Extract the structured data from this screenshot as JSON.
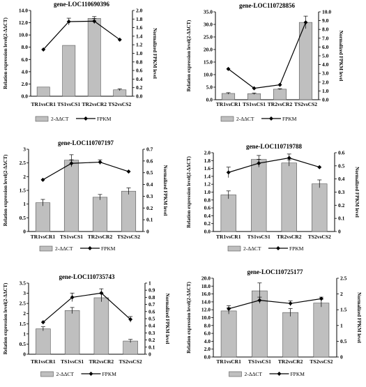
{
  "colors": {
    "bar_fill": "#bfbfbf",
    "bar_stroke": "#555555",
    "line": "#000000",
    "background": "#ffffff"
  },
  "legend": {
    "bar_label": "2-ΔΔCT",
    "line_label": "FPKM"
  },
  "chart_data": [
    {
      "type": "bar",
      "title": "gene-LOC110690396",
      "categories": [
        "TR1vsCR1",
        "TS1vsCS1",
        "TR2vsCR2",
        "TS2vsCS2"
      ],
      "ylabel": "Relation expression level(2-ΔΔCT)",
      "y2label": "Normalized FPKM level",
      "ylim": [
        0,
        14
      ],
      "yticks": [
        0,
        2,
        4,
        6,
        8,
        10,
        12,
        14
      ],
      "ytick_labels": [
        "0.0",
        "2.0",
        "4.0",
        "6.0",
        "8.0",
        "10.0",
        "12.0",
        "14.0"
      ],
      "y2lim": [
        0,
        2
      ],
      "y2ticks": [
        0,
        0.2,
        0.4,
        0.6,
        0.8,
        1,
        1.2,
        1.4,
        1.6,
        1.8,
        2
      ],
      "y2tick_labels": [
        "0.0",
        "0.2",
        "0.4",
        "0.6",
        "0.8",
        "1.0",
        "1.2",
        "1.4",
        "1.6",
        "1.8",
        "2.0"
      ],
      "series": [
        {
          "name": "2-ΔΔCT",
          "type": "bar",
          "values": [
            1.5,
            8.3,
            12.7,
            1.05
          ],
          "errors": [
            0,
            0,
            0.3,
            0.15
          ]
        },
        {
          "name": "FPKM",
          "type": "line",
          "axis": "secondary",
          "values": [
            1.09,
            1.74,
            1.75,
            1.32
          ],
          "errors": [
            0,
            0.08,
            0.06,
            0
          ]
        }
      ],
      "legend_position": "bottom"
    },
    {
      "type": "bar",
      "title": "gene-LOC110728856",
      "categories": [
        "TR1vsCR1",
        "TS1vsCS1",
        "TR2vsCR2",
        "TS2vsCS2"
      ],
      "ylabel": "Relation expression level(2-ΔΔCT)",
      "y2label": "Normalized FPKM level",
      "ylim": [
        0,
        35
      ],
      "yticks": [
        0,
        5,
        10,
        15,
        20,
        25,
        30,
        35
      ],
      "ytick_labels": [
        "0.0",
        "5.0",
        "10.0",
        "15.0",
        "20.0",
        "25.0",
        "30.0",
        "35.0"
      ],
      "y2lim": [
        0,
        10
      ],
      "y2ticks": [
        0,
        1,
        2,
        3,
        4,
        5,
        6,
        7,
        8,
        9,
        10
      ],
      "y2tick_labels": [
        "0.0",
        "1.0",
        "2.0",
        "3.0",
        "4.0",
        "5.0",
        "6.0",
        "7.0",
        "8.0",
        "9.0",
        "10.0"
      ],
      "series": [
        {
          "name": "2-ΔΔCT",
          "type": "bar",
          "values": [
            2.5,
            2.4,
            4.2,
            30.8
          ],
          "errors": [
            0.3,
            0.3,
            0.2,
            2.5
          ]
        },
        {
          "name": "FPKM",
          "type": "line",
          "axis": "secondary",
          "values": [
            3.5,
            1.3,
            1.7,
            8.8
          ],
          "errors": [
            0,
            0,
            0,
            0
          ]
        }
      ],
      "legend_position": "bottom"
    },
    {
      "type": "bar",
      "title": "gene-LOC110707197",
      "categories": [
        "TR1vsCR1",
        "TS1vsCS1",
        "TR2vsCR2",
        "TS2vsCS2"
      ],
      "ylabel": "Relation expression level(2-ΔΔCT)",
      "y2label": "Normalized FPKM level",
      "ylim": [
        0,
        3
      ],
      "yticks": [
        0,
        0.5,
        1,
        1.5,
        2,
        2.5,
        3
      ],
      "ytick_labels": [
        "0",
        "0.5",
        "1",
        "1.5",
        "2",
        "2.5",
        "3"
      ],
      "y2lim": [
        0,
        0.7
      ],
      "y2ticks": [
        0,
        0.1,
        0.2,
        0.3,
        0.4,
        0.5,
        0.6,
        0.7
      ],
      "y2tick_labels": [
        "0",
        "0.1",
        "0.2",
        "0.3",
        "0.4",
        "0.5",
        "0.6",
        "0.7"
      ],
      "series": [
        {
          "name": "2-ΔΔCT",
          "type": "bar",
          "values": [
            1.05,
            2.6,
            1.25,
            1.47
          ],
          "errors": [
            0.12,
            0.2,
            0.1,
            0.12
          ]
        },
        {
          "name": "FPKM",
          "type": "line",
          "axis": "secondary",
          "values": [
            0.44,
            0.58,
            0.59,
            0.51
          ],
          "errors": [
            0,
            0.03,
            0.02,
            0
          ]
        }
      ],
      "legend_position": "bottom"
    },
    {
      "type": "bar",
      "title": "gene-LOC110719788",
      "categories": [
        "TR1vsCR1",
        "TS1vsCS1",
        "TR2vsCR2",
        "TS2vsCS2"
      ],
      "ylabel": "Relation expression level(2-ΔΔCT)",
      "y2label": "Normalized FPKM level",
      "ylim": [
        0,
        2
      ],
      "yticks": [
        0,
        0.2,
        0.4,
        0.6,
        0.8,
        1,
        1.2,
        1.4,
        1.6,
        1.8,
        2
      ],
      "ytick_labels": [
        "0.0",
        "0.2",
        "0.4",
        "0.6",
        "0.8",
        "1.0",
        "1.2",
        "1.4",
        "1.6",
        "1.8",
        "2.0"
      ],
      "y2lim": [
        0,
        0.6
      ],
      "y2ticks": [
        0,
        0.1,
        0.2,
        0.3,
        0.4,
        0.5,
        0.6
      ],
      "y2tick_labels": [
        "0",
        "0.1",
        "0.2",
        "0.3",
        "0.4",
        "0.5",
        "0.6"
      ],
      "series": [
        {
          "name": "2-ΔΔCT",
          "type": "bar",
          "values": [
            0.93,
            1.83,
            1.74,
            1.21
          ],
          "errors": [
            0.1,
            0.1,
            0.08,
            0.1
          ]
        },
        {
          "name": "FPKM",
          "type": "line",
          "axis": "secondary",
          "values": [
            0.45,
            0.52,
            0.56,
            0.49
          ],
          "errors": [
            0.04,
            0.03,
            0.03,
            0
          ]
        }
      ],
      "legend_position": "bottom"
    },
    {
      "type": "bar",
      "title": "gene-LOC110735743",
      "categories": [
        "TR1vsCR1",
        "TS1vsCS1",
        "TR2vsCR2",
        "TS2vsCS2"
      ],
      "ylabel": "Relation expression level(2-ΔΔCT)",
      "y2label": "Normalized FPKM level",
      "ylim": [
        0,
        3.5
      ],
      "yticks": [
        0,
        0.5,
        1,
        1.5,
        2,
        2.5,
        3,
        3.5
      ],
      "ytick_labels": [
        "0",
        "0.5",
        "1",
        "1.5",
        "2",
        "2.5",
        "3",
        "3.5"
      ],
      "y2lim": [
        0,
        1
      ],
      "y2ticks": [
        0,
        0.1,
        0.2,
        0.3,
        0.4,
        0.5,
        0.6,
        0.7,
        0.8,
        0.9,
        1
      ],
      "y2tick_labels": [
        "0",
        "0.1",
        "0.2",
        "0.3",
        "0.4",
        "0.5",
        "0.6",
        "0.7",
        "0.8",
        "0.9",
        "1"
      ],
      "series": [
        {
          "name": "2-ΔΔCT",
          "type": "bar",
          "values": [
            1.25,
            2.15,
            2.78,
            0.65
          ],
          "errors": [
            0.1,
            0.15,
            0.2,
            0.08
          ]
        },
        {
          "name": "FPKM",
          "type": "line",
          "axis": "secondary",
          "values": [
            0.45,
            0.8,
            0.86,
            0.49
          ],
          "errors": [
            0,
            0.06,
            0.06,
            0.04
          ]
        }
      ],
      "legend_position": "bottom"
    },
    {
      "type": "bar",
      "title": "gene-LOC110725177",
      "categories": [
        "TR1vsCR1",
        "TS1vsCS1",
        "TR2vsCR2",
        "TS2vsCS2"
      ],
      "ylabel": "Relation expression level(2-ΔΔCT)",
      "y2label": "Normalized FPKM level",
      "ylim": [
        0,
        20
      ],
      "yticks": [
        0,
        2,
        4,
        6,
        8,
        10,
        12,
        14,
        16,
        18,
        20
      ],
      "ytick_labels": [
        "0.0",
        "2.0",
        "4.0",
        "6.0",
        "8.0",
        "10.0",
        "12.0",
        "14.0",
        "16.0",
        "18.0",
        "20.0"
      ],
      "y2lim": [
        0,
        2.5
      ],
      "y2ticks": [
        0,
        0.5,
        1,
        1.5,
        2,
        2.5
      ],
      "y2tick_labels": [
        "0",
        "0.5",
        "1",
        "1.5",
        "2",
        "2.5"
      ],
      "series": [
        {
          "name": "2-ΔΔCT",
          "type": "bar",
          "values": [
            11.7,
            16.8,
            11.3,
            13.7
          ],
          "errors": [
            0.8,
            2.0,
            1.0,
            1.0
          ]
        },
        {
          "name": "FPKM",
          "type": "line",
          "axis": "secondary",
          "values": [
            1.53,
            1.8,
            1.7,
            1.85
          ],
          "errors": [
            0.1,
            0.1,
            0.08,
            0.05
          ]
        }
      ],
      "legend_position": "bottom"
    }
  ]
}
